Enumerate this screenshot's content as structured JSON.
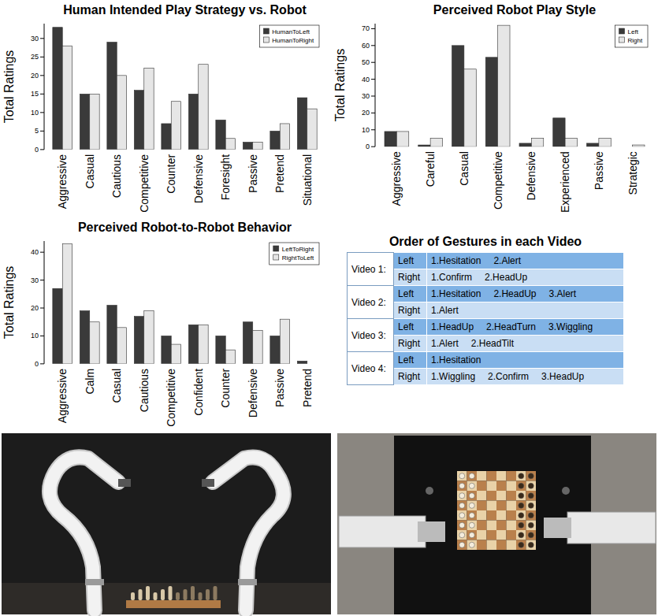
{
  "chart_data": [
    {
      "type": "bar",
      "title": "Human Intended Play Strategy vs. Robot",
      "y_label": "Total Ratings",
      "categories": [
        "Aggressive",
        "Casual",
        "Cautious",
        "Competitive",
        "Counter",
        "Defensive",
        "Foresight",
        "Passive",
        "Pretend",
        "Situational"
      ],
      "series": [
        {
          "name": "HumanToLeft",
          "color": "#3a3a3a",
          "values": [
            33,
            15,
            29,
            16,
            7,
            15,
            8,
            2,
            5,
            14
          ]
        },
        {
          "name": "HumanToRight",
          "color": "#e6e6e6",
          "values": [
            28,
            15,
            20,
            22,
            13,
            23,
            3,
            2,
            7,
            11
          ]
        }
      ],
      "ylim": [
        0,
        34
      ],
      "yticks": [
        0,
        5,
        10,
        15,
        20,
        25,
        30
      ],
      "legend": "top-right"
    },
    {
      "type": "bar",
      "title": "Perceived Robot Play Style",
      "y_label": "Total Ratings",
      "categories": [
        "Aggressive",
        "Careful",
        "Casual",
        "Competitive",
        "Defensive",
        "Experienced",
        "Passive",
        "Strategic"
      ],
      "series": [
        {
          "name": "Left",
          "color": "#3a3a3a",
          "values": [
            9,
            1,
            60,
            53,
            2,
            17,
            2,
            0
          ]
        },
        {
          "name": "Right",
          "color": "#e6e6e6",
          "values": [
            9,
            5,
            46,
            72,
            5,
            5,
            5,
            1
          ]
        }
      ],
      "ylim": [
        0,
        73
      ],
      "yticks": [
        0,
        10,
        20,
        30,
        40,
        50,
        60,
        70
      ],
      "legend": "top-right"
    },
    {
      "type": "bar",
      "title": "Perceived Robot-to-Robot Behavior",
      "y_label": "Total Ratings",
      "categories": [
        "Aggressive",
        "Calm",
        "Casual",
        "Cautious",
        "Competitive",
        "Confident",
        "Counter",
        "Defensive",
        "Passive",
        "Pretend"
      ],
      "series": [
        {
          "name": "LeftToRight",
          "color": "#3a3a3a",
          "values": [
            27,
            19,
            21,
            17,
            10,
            14,
            10,
            15,
            10,
            1
          ]
        },
        {
          "name": "RightToLeft",
          "color": "#e6e6e6",
          "values": [
            43,
            15,
            13,
            19,
            7,
            14,
            5,
            12,
            16,
            0
          ]
        }
      ],
      "ylim": [
        0,
        44
      ],
      "yticks": [
        0,
        10,
        20,
        30,
        40
      ],
      "legend": "top-right"
    }
  ],
  "table": {
    "title": "Order of Gestures in each Video",
    "rows": [
      {
        "video": "Video 1:",
        "sides": [
          {
            "side": "Left",
            "gestures": [
              "1.Hesitation",
              "2.Alert"
            ]
          },
          {
            "side": "Right",
            "gestures": [
              "1.Confirm",
              "2.HeadUp"
            ]
          }
        ]
      },
      {
        "video": "Video 2:",
        "sides": [
          {
            "side": "Left",
            "gestures": [
              "1.Hesitation",
              "2.HeadUp",
              "3.Alert"
            ]
          },
          {
            "side": "Right",
            "gestures": [
              "1.Alert"
            ]
          }
        ]
      },
      {
        "video": "Video 3:",
        "sides": [
          {
            "side": "Left",
            "gestures": [
              "1.HeadUp",
              "2.HeadTurn",
              "3.Wiggling"
            ]
          },
          {
            "side": "Right",
            "gestures": [
              "1.Alert",
              "2.HeadTilt"
            ]
          }
        ]
      },
      {
        "video": "Video 4:",
        "sides": [
          {
            "side": "Left",
            "gestures": [
              "1.Hesitation"
            ]
          },
          {
            "side": "Right",
            "gestures": [
              "1.Wiggling",
              "2.Confirm",
              "3.HeadUp"
            ]
          }
        ]
      }
    ]
  }
}
